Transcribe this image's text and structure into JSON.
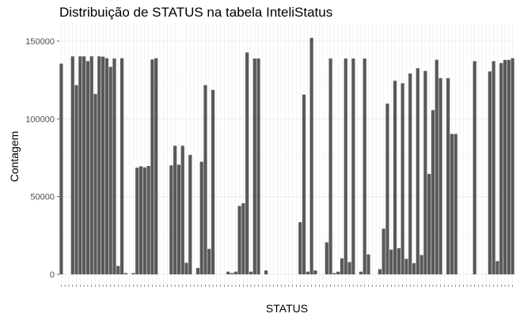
{
  "chart_data": {
    "type": "bar",
    "title": "Distribuição de STATUS na tabela InteliStatus",
    "xlabel": "STATUS",
    "ylabel": "Contagem",
    "ylim": [
      0,
      157000
    ],
    "yticks": [
      0,
      50000,
      100000,
      150000
    ],
    "ytick_labels": [
      "0",
      "50000",
      "100000",
      "150000"
    ],
    "grid": true,
    "bar_color": "#595959",
    "grid_color": "#ebebeb",
    "tick_label_color": "#4d4d4d",
    "categories_legible": false,
    "values": [
      135500,
      0,
      0,
      140200,
      121700,
      140200,
      140200,
      137100,
      140200,
      116000,
      140200,
      140000,
      139000,
      133400,
      138800,
      5400,
      139000,
      800,
      0,
      800,
      68600,
      69500,
      68800,
      69700,
      138200,
      139000,
      0,
      0,
      0,
      70100,
      82700,
      70500,
      82700,
      7400,
      76800,
      0,
      4100,
      72400,
      121700,
      16400,
      118600,
      0,
      0,
      0,
      1700,
      800,
      1700,
      44000,
      45700,
      142700,
      1700,
      138800,
      138800,
      0,
      2500,
      0,
      0,
      0,
      0,
      0,
      0,
      0,
      0,
      33500,
      115600,
      1700,
      152100,
      2500,
      0,
      0,
      20600,
      138800,
      800,
      1700,
      10300,
      138800,
      7900,
      138800,
      0,
      1700,
      138800,
      12800,
      0,
      0,
      3300,
      29400,
      109800,
      15900,
      124500,
      16800,
      122900,
      10000,
      129200,
      7200,
      132600,
      12400,
      130800,
      64600,
      105600,
      138000,
      126200,
      0,
      126200,
      90300,
      90300,
      0,
      0,
      0,
      0,
      137100,
      0,
      0,
      0,
      130500,
      137100,
      8500,
      135900,
      137900,
      137900,
      139000
    ]
  }
}
